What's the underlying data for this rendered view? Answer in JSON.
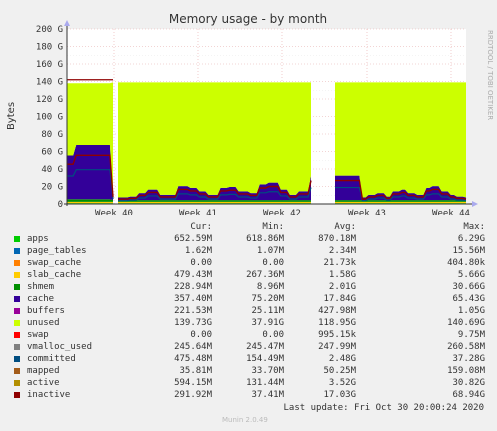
{
  "chart_data": {
    "type": "area",
    "title": "Memory usage - by month",
    "ylabel": "Bytes",
    "side_label": "RRDTOOL / TOBI OETIKER",
    "ylim": [
      0,
      200
    ],
    "y_unit": "G",
    "y_ticks": [
      "0",
      "20 G",
      "40 G",
      "60 G",
      "80 G",
      "100 G",
      "120 G",
      "140 G",
      "160 G",
      "180 G",
      "200 G"
    ],
    "x_ticks": [
      "Week 40",
      "Week 41",
      "Week 42",
      "Week 43",
      "Week 44"
    ],
    "grid": true,
    "gaps": [
      "between Week 40 and Week 41 (short)",
      "between Week 42 and Week 43"
    ],
    "columns": [
      "Cur:",
      "Min:",
      "Avg:",
      "Max:"
    ],
    "series": [
      {
        "name": "apps",
        "color": "#00cc00",
        "cur": "652.59M",
        "min": "618.86M",
        "avg": "870.18M",
        "max": "6.29G"
      },
      {
        "name": "page_tables",
        "color": "#0066b3",
        "cur": "1.62M",
        "min": "1.07M",
        "avg": "2.34M",
        "max": "15.56M"
      },
      {
        "name": "swap_cache",
        "color": "#ff8000",
        "cur": "0.00",
        "min": "0.00",
        "avg": "21.73k",
        "max": "404.80k"
      },
      {
        "name": "slab_cache",
        "color": "#ffcc00",
        "cur": "479.43M",
        "min": "267.36M",
        "avg": "1.58G",
        "max": "5.66G"
      },
      {
        "name": "shmem",
        "color": "#008f00",
        "cur": "228.94M",
        "min": "8.96M",
        "avg": "2.01G",
        "max": "30.66G"
      },
      {
        "name": "cache",
        "color": "#330099",
        "cur": "357.40M",
        "min": "75.20M",
        "avg": "17.84G",
        "max": "65.43G"
      },
      {
        "name": "buffers",
        "color": "#990099",
        "cur": "221.53M",
        "min": "25.11M",
        "avg": "427.98M",
        "max": "1.05G"
      },
      {
        "name": "unused",
        "color": "#ccff00",
        "cur": "139.73G",
        "min": "37.91G",
        "avg": "118.95G",
        "max": "140.69G"
      },
      {
        "name": "swap",
        "color": "#ff0000",
        "cur": "0.00",
        "min": "0.00",
        "avg": "995.15k",
        "max": "9.75M"
      },
      {
        "name": "vmalloc_used",
        "color": "#808080",
        "cur": "245.64M",
        "min": "245.47M",
        "avg": "247.99M",
        "max": "260.58M"
      },
      {
        "name": "committed",
        "color": "#004d80",
        "cur": "475.48M",
        "min": "154.49M",
        "avg": "2.48G",
        "max": "37.28G"
      },
      {
        "name": "mapped",
        "color": "#a35c1a",
        "cur": "35.81M",
        "min": "33.70M",
        "avg": "50.25M",
        "max": "159.08M"
      },
      {
        "name": "active",
        "color": "#b38f00",
        "cur": "594.15M",
        "min": "131.44M",
        "avg": "3.52G",
        "max": "30.82G"
      },
      {
        "name": "inactive",
        "color": "#8f0000",
        "cur": "291.92M",
        "min": "37.41M",
        "avg": "17.03G",
        "max": "68.94G"
      }
    ],
    "last_update": "Last update: Fri Oct 30 20:00:24 2020",
    "footer": "Munin 2.0.49"
  }
}
